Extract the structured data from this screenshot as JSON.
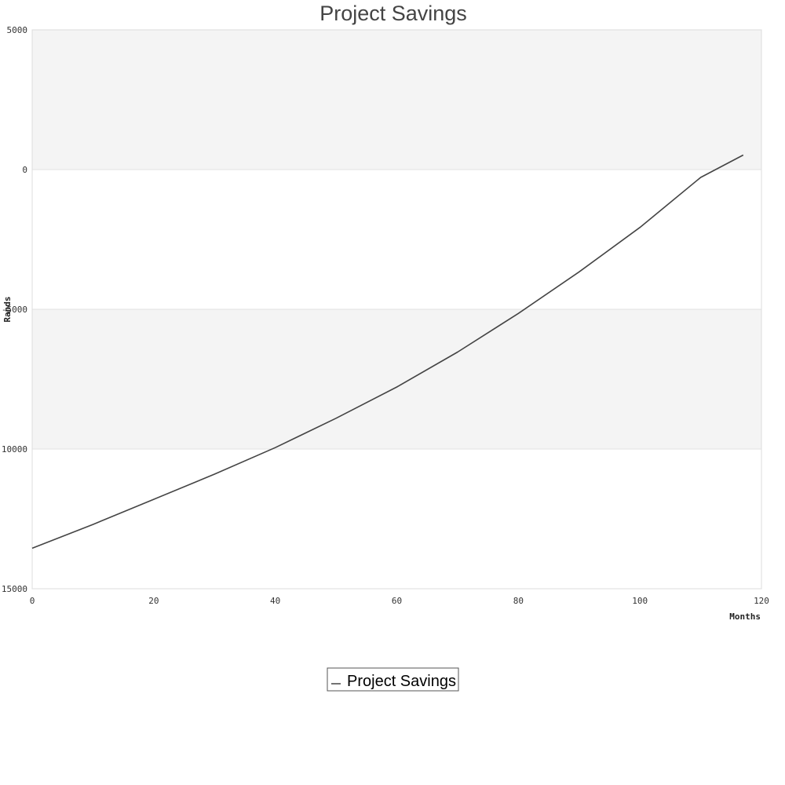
{
  "chart_data": {
    "type": "line",
    "title": "Project Savings",
    "xlabel": "Months",
    "ylabel": "Rands",
    "xlim": [
      0,
      120
    ],
    "ylim": [
      -15000,
      5000
    ],
    "x_ticks": [
      0,
      20,
      40,
      60,
      80,
      100,
      120
    ],
    "y_ticks": [
      5000,
      0,
      -5000,
      -10000,
      -15000
    ],
    "x_tick_labels": [
      "0",
      "20",
      "40",
      "60",
      "80",
      "100",
      "120"
    ],
    "y_tick_labels": [
      "5000",
      "0",
      "-5000",
      "-10000",
      "-15000"
    ],
    "grid": true,
    "band_colors": [
      "#f4f4f4",
      "#ffffff"
    ],
    "line_color": "#444444",
    "legend": {
      "position": "bottom-center",
      "entries": [
        "Project Savings"
      ]
    },
    "series": [
      {
        "name": "Project Savings",
        "x": [
          0,
          10,
          20,
          30,
          40,
          50,
          60,
          70,
          80,
          90,
          100,
          110,
          117
        ],
        "y": [
          -13550,
          -12700,
          -11800,
          -10900,
          -9950,
          -8900,
          -7780,
          -6530,
          -5150,
          -3660,
          -2070,
          -280,
          520
        ]
      }
    ]
  }
}
